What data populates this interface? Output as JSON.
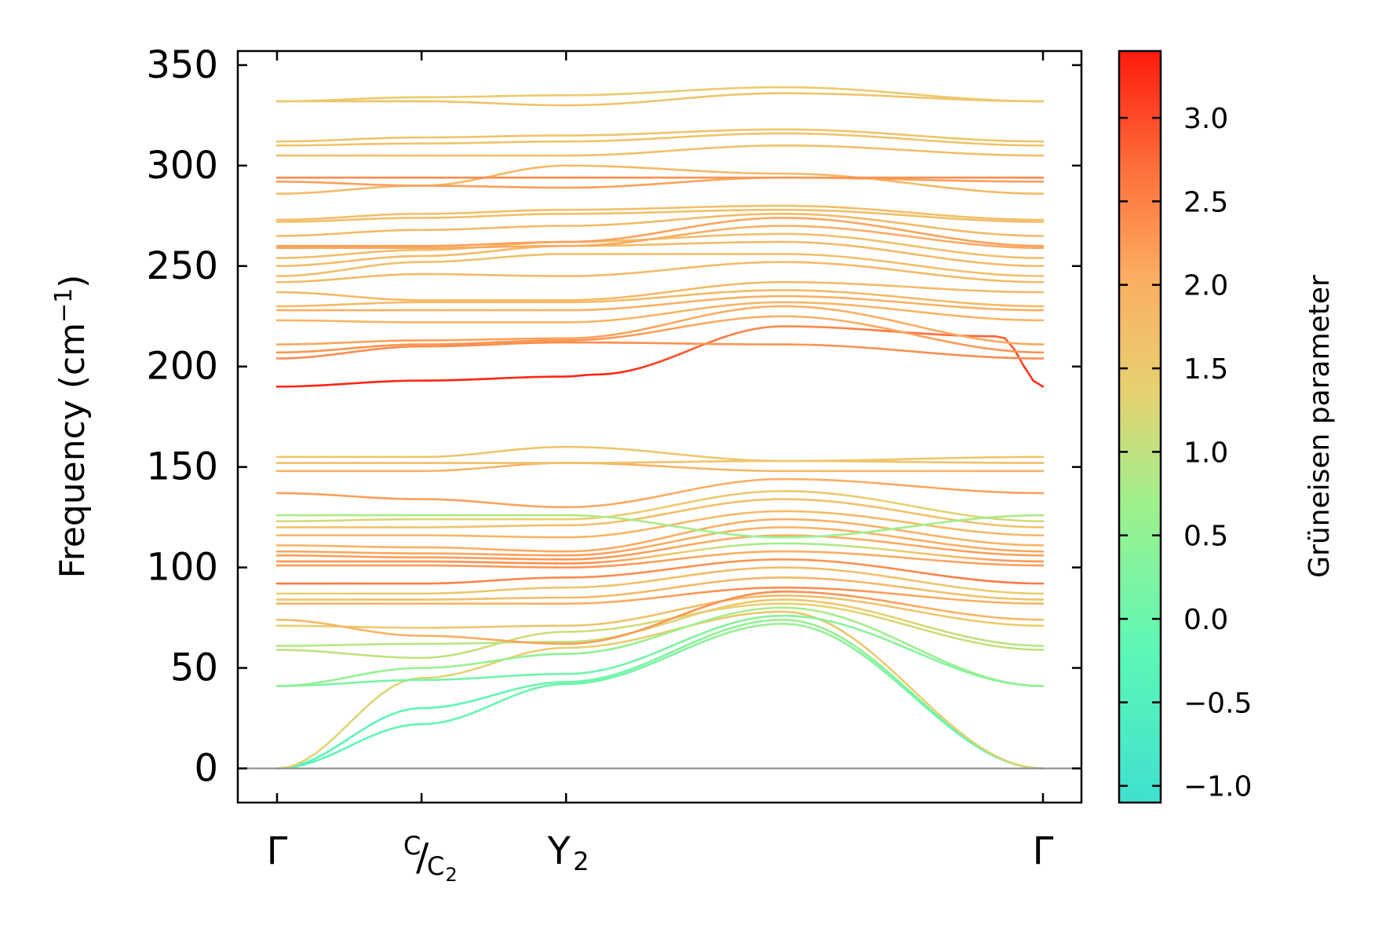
{
  "chart_data": {
    "type": "line",
    "subtype": "phonon-band-structure",
    "title": "",
    "ylabel": "Frequency (cm⁻¹)",
    "ylabel_parts": {
      "main": "Frequency (cm",
      "sup": "−1",
      "close": ")"
    },
    "ylim": [
      -17,
      357
    ],
    "yticks": [
      0,
      50,
      100,
      150,
      200,
      250,
      300,
      350
    ],
    "ytick_labels": [
      "0",
      "50",
      "100",
      "150",
      "200",
      "250",
      "300",
      "350"
    ],
    "k_range": [
      0,
      5.3
    ],
    "xticks": [
      {
        "k": 0,
        "label": "Γ"
      },
      {
        "k": 1.0,
        "label": "C/C₂"
      },
      {
        "k": 2.0,
        "label": "Y₂"
      },
      {
        "k": 5.3,
        "label": "Γ"
      }
    ],
    "xtick_display": {
      "gamma": "Γ",
      "c_num": "C",
      "c_slash": "/",
      "c_den": "C",
      "c_den_sub": "2",
      "y_main": "Y",
      "y_sub": "2"
    },
    "colorbar": {
      "label": "Grüneisen parameter",
      "range": [
        -1.1,
        3.4
      ],
      "ticks": [
        -1.0,
        -0.5,
        0.0,
        0.5,
        1.0,
        1.5,
        2.0,
        2.5,
        3.0
      ],
      "tick_labels": [
        "−1.0",
        "−0.5",
        "0.0",
        "0.5",
        "1.0",
        "1.5",
        "2.0",
        "2.5",
        "3.0"
      ],
      "colormap": "rainbow (upper half: turquoise → green → yellow → orange → red)"
    },
    "bands": [
      {
        "k": [
          0,
          1.0,
          2.0,
          3.5,
          5.3
        ],
        "freq": [
          0,
          22,
          42,
          72,
          0
        ],
        "gamma": [
          -0.3,
          -0.1,
          0.0,
          0.6,
          -0.3
        ]
      },
      {
        "k": [
          0,
          1.0,
          2.0,
          3.5,
          5.3
        ],
        "freq": [
          0,
          30,
          43,
          74,
          0
        ],
        "gamma": [
          -0.3,
          -0.2,
          0.0,
          0.6,
          -0.3
        ]
      },
      {
        "k": [
          0,
          1.0,
          2.0,
          3.5,
          5.3
        ],
        "freq": [
          0,
          45,
          60,
          78,
          0
        ],
        "gamma": [
          1.3,
          1.3,
          1.4,
          1.6,
          1.3
        ]
      },
      {
        "k": [
          0,
          1.0,
          2.0,
          3.5,
          5.3
        ],
        "freq": [
          41,
          44,
          47,
          76,
          41
        ],
        "gamma": [
          0.3,
          0.1,
          0.0,
          0.4,
          0.3
        ]
      },
      {
        "k": [
          0,
          1.0,
          2.0,
          3.5,
          5.3
        ],
        "freq": [
          41,
          50,
          57,
          80,
          41
        ],
        "gamma": [
          0.5,
          0.6,
          0.5,
          0.8,
          0.5
        ]
      },
      {
        "k": [
          0,
          1.0,
          2.0,
          3.5,
          5.3
        ],
        "freq": [
          59,
          55,
          68,
          82,
          59
        ],
        "gamma": [
          1.0,
          1.0,
          1.1,
          1.4,
          1.0
        ]
      },
      {
        "k": [
          0,
          1.0,
          2.0,
          3.5,
          5.3
        ],
        "freq": [
          61,
          62,
          63,
          84,
          61
        ],
        "gamma": [
          0.9,
          0.9,
          1.0,
          1.6,
          0.9
        ]
      },
      {
        "k": [
          0,
          1.0,
          2.0,
          3.5,
          5.3
        ],
        "freq": [
          71,
          70,
          71,
          86,
          71
        ],
        "gamma": [
          1.4,
          1.5,
          1.6,
          1.8,
          1.4
        ]
      },
      {
        "k": [
          0,
          1.0,
          2.0,
          3.5,
          5.3
        ],
        "freq": [
          74,
          66,
          62,
          88,
          74
        ],
        "gamma": [
          1.8,
          2.0,
          2.2,
          2.4,
          1.8
        ]
      },
      {
        "k": [
          0,
          1.0,
          2.0,
          3.5,
          5.3
        ],
        "freq": [
          82,
          82,
          82,
          90,
          82
        ],
        "gamma": [
          1.9,
          1.9,
          2.0,
          2.4,
          1.9
        ]
      },
      {
        "k": [
          0,
          1.0,
          2.0,
          3.5,
          5.3
        ],
        "freq": [
          84,
          84,
          85,
          95,
          84
        ],
        "gamma": [
          1.6,
          1.7,
          1.8,
          1.9,
          1.6
        ]
      },
      {
        "k": [
          0,
          1.0,
          2.0,
          3.5,
          5.3
        ],
        "freq": [
          87,
          87,
          90,
          100,
          87
        ],
        "gamma": [
          1.4,
          1.5,
          1.6,
          1.8,
          1.4
        ]
      },
      {
        "k": [
          0,
          1.0,
          2.0,
          3.5,
          5.3
        ],
        "freq": [
          92,
          92,
          95,
          104,
          92
        ],
        "gamma": [
          2.6,
          2.5,
          2.4,
          2.3,
          2.6
        ]
      },
      {
        "k": [
          0,
          1.0,
          2.0,
          3.5,
          5.3
        ],
        "freq": [
          101,
          101,
          100,
          108,
          101
        ],
        "gamma": [
          2.2,
          2.2,
          2.3,
          2.0,
          2.2
        ]
      },
      {
        "k": [
          0,
          1.0,
          2.0,
          3.5,
          5.3
        ],
        "freq": [
          103,
          103,
          102,
          112,
          103
        ],
        "gamma": [
          2.3,
          2.3,
          2.4,
          0.7,
          2.3
        ]
      },
      {
        "k": [
          0,
          1.0,
          2.0,
          3.5,
          5.3
        ],
        "freq": [
          106,
          105,
          104,
          116,
          106
        ],
        "gamma": [
          2.2,
          2.2,
          2.3,
          2.0,
          2.2
        ]
      },
      {
        "k": [
          0,
          1.0,
          2.0,
          3.5,
          5.3
        ],
        "freq": [
          108,
          107,
          106,
          120,
          108
        ],
        "gamma": [
          2.1,
          2.1,
          2.2,
          1.9,
          2.1
        ]
      },
      {
        "k": [
          0,
          1.0,
          2.0,
          3.5,
          5.3
        ],
        "freq": [
          111,
          110,
          108,
          124,
          111
        ],
        "gamma": [
          1.9,
          2.0,
          2.1,
          2.0,
          1.9
        ]
      },
      {
        "k": [
          0,
          1.0,
          2.0,
          3.5,
          5.3
        ],
        "freq": [
          116,
          116,
          115,
          128,
          116
        ],
        "gamma": [
          1.8,
          1.8,
          1.9,
          1.8,
          1.8
        ]
      },
      {
        "k": [
          0,
          1.0,
          2.0,
          3.5,
          5.3
        ],
        "freq": [
          120,
          120,
          121,
          134,
          120
        ],
        "gamma": [
          1.6,
          1.6,
          1.7,
          1.7,
          1.6
        ]
      },
      {
        "k": [
          0,
          1.0,
          2.0,
          3.5,
          5.3
        ],
        "freq": [
          123,
          124,
          124,
          138,
          123
        ],
        "gamma": [
          1.2,
          1.3,
          1.4,
          1.5,
          1.2
        ]
      },
      {
        "k": [
          0,
          1.0,
          2.0,
          3.5,
          5.3
        ],
        "freq": [
          126,
          126,
          126,
          115,
          126
        ],
        "gamma": [
          0.8,
          0.8,
          0.9,
          0.6,
          0.8
        ]
      },
      {
        "k": [
          0,
          1.0,
          2.0,
          3.5,
          5.3
        ],
        "freq": [
          137,
          134,
          130,
          144,
          137
        ],
        "gamma": [
          2.2,
          2.2,
          2.1,
          2.0,
          2.2
        ]
      },
      {
        "k": [
          0,
          1.0,
          2.0,
          3.5,
          5.3
        ],
        "freq": [
          148,
          148,
          152,
          148,
          148
        ],
        "gamma": [
          1.9,
          1.9,
          2.0,
          1.8,
          1.9
        ]
      },
      {
        "k": [
          0,
          1.0,
          2.0,
          3.5,
          5.3
        ],
        "freq": [
          152,
          152,
          152,
          153,
          152
        ],
        "gamma": [
          1.7,
          1.7,
          1.7,
          1.6,
          1.7
        ]
      },
      {
        "k": [
          0,
          1.0,
          2.0,
          3.5,
          5.3
        ],
        "freq": [
          155,
          155,
          160,
          153,
          155
        ],
        "gamma": [
          1.6,
          1.6,
          1.6,
          1.5,
          1.6
        ]
      },
      {
        "k": [
          0,
          1.0,
          2.0,
          2.2,
          3.5,
          5.0,
          5.3
        ],
        "freq": [
          190,
          193,
          195,
          196,
          220,
          215,
          190
        ],
        "gamma": [
          3.3,
          3.3,
          3.3,
          3.3,
          2.4,
          2.8,
          3.3
        ]
      },
      {
        "k": [
          0,
          1.0,
          2.0,
          3.5,
          5.3
        ],
        "freq": [
          204,
          210,
          212,
          211,
          204
        ],
        "gamma": [
          2.4,
          2.4,
          2.4,
          2.3,
          2.4
        ]
      },
      {
        "k": [
          0,
          1.0,
          2.0,
          3.5,
          5.3
        ],
        "freq": [
          207,
          211,
          213,
          225,
          207
        ],
        "gamma": [
          2.3,
          2.3,
          2.3,
          2.0,
          2.3
        ]
      },
      {
        "k": [
          0,
          1.0,
          2.0,
          3.5,
          5.3
        ],
        "freq": [
          211,
          213,
          214,
          230,
          211
        ],
        "gamma": [
          2.1,
          2.2,
          2.2,
          2.0,
          2.1
        ]
      },
      {
        "k": [
          0,
          1.0,
          2.0,
          3.5,
          5.3
        ],
        "freq": [
          223,
          222,
          222,
          232,
          223
        ],
        "gamma": [
          1.9,
          1.9,
          1.9,
          1.9,
          1.9
        ]
      },
      {
        "k": [
          0,
          1.0,
          2.0,
          3.5,
          5.3
        ],
        "freq": [
          228,
          228,
          228,
          235,
          228
        ],
        "gamma": [
          2.0,
          2.0,
          2.0,
          2.0,
          2.0
        ]
      },
      {
        "k": [
          0,
          1.0,
          2.0,
          3.5,
          5.3
        ],
        "freq": [
          230,
          232,
          232,
          238,
          230
        ],
        "gamma": [
          1.8,
          1.8,
          1.8,
          1.8,
          1.8
        ]
      },
      {
        "k": [
          0,
          1.0,
          2.0,
          3.5,
          5.3
        ],
        "freq": [
          237,
          233,
          233,
          242,
          237
        ],
        "gamma": [
          1.8,
          1.8,
          1.8,
          1.8,
          1.8
        ]
      },
      {
        "k": [
          0,
          1.0,
          2.0,
          3.5,
          5.3
        ],
        "freq": [
          242,
          246,
          245,
          252,
          242
        ],
        "gamma": [
          1.8,
          1.8,
          1.8,
          1.8,
          1.8
        ]
      },
      {
        "k": [
          0,
          1.0,
          2.0,
          3.5,
          5.3
        ],
        "freq": [
          245,
          252,
          256,
          256,
          245
        ],
        "gamma": [
          1.7,
          1.7,
          1.7,
          1.7,
          1.7
        ]
      },
      {
        "k": [
          0,
          1.0,
          2.0,
          3.5,
          5.3
        ],
        "freq": [
          250,
          255,
          260,
          262,
          250
        ],
        "gamma": [
          1.8,
          1.8,
          1.8,
          1.8,
          1.8
        ]
      },
      {
        "k": [
          0,
          1.0,
          2.0,
          3.5,
          5.3
        ],
        "freq": [
          254,
          258,
          262,
          266,
          254
        ],
        "gamma": [
          1.7,
          1.7,
          1.7,
          1.7,
          1.7
        ]
      },
      {
        "k": [
          0,
          1.0,
          2.0,
          3.5,
          5.3
        ],
        "freq": [
          259,
          259,
          260,
          270,
          259
        ],
        "gamma": [
          2.1,
          2.1,
          2.1,
          2.0,
          2.1
        ]
      },
      {
        "k": [
          0,
          1.0,
          2.0,
          3.5,
          5.3
        ],
        "freq": [
          260,
          260,
          262,
          274,
          260
        ],
        "gamma": [
          2.2,
          2.2,
          2.2,
          2.1,
          2.2
        ]
      },
      {
        "k": [
          0,
          1.0,
          2.0,
          3.5,
          5.3
        ],
        "freq": [
          265,
          268,
          270,
          276,
          265
        ],
        "gamma": [
          1.8,
          1.8,
          1.8,
          1.8,
          1.8
        ]
      },
      {
        "k": [
          0,
          1.0,
          2.0,
          3.5,
          5.3
        ],
        "freq": [
          272,
          274,
          276,
          278,
          272
        ],
        "gamma": [
          1.7,
          1.7,
          1.7,
          1.7,
          1.7
        ]
      },
      {
        "k": [
          0,
          1.0,
          2.0,
          3.5,
          5.3
        ],
        "freq": [
          273,
          276,
          278,
          280,
          273
        ],
        "gamma": [
          1.7,
          1.7,
          1.7,
          1.7,
          1.7
        ]
      },
      {
        "k": [
          0,
          1.0,
          2.0,
          3.5,
          5.3
        ],
        "freq": [
          286,
          290,
          300,
          296,
          286
        ],
        "gamma": [
          1.8,
          1.8,
          1.8,
          1.8,
          1.8
        ]
      },
      {
        "k": [
          0,
          1.0,
          2.0,
          3.5,
          5.3
        ],
        "freq": [
          292,
          290,
          289,
          294,
          292
        ],
        "gamma": [
          2.2,
          2.2,
          2.2,
          2.1,
          2.2
        ]
      },
      {
        "k": [
          0,
          1.0,
          2.0,
          3.5,
          5.3
        ],
        "freq": [
          294,
          294,
          294,
          294,
          294
        ],
        "gamma": [
          2.4,
          2.4,
          2.4,
          2.3,
          2.4
        ]
      },
      {
        "k": [
          0,
          1.0,
          2.0,
          3.5,
          5.3
        ],
        "freq": [
          305,
          305,
          305,
          310,
          305
        ],
        "gamma": [
          1.7,
          1.7,
          1.7,
          1.7,
          1.7
        ]
      },
      {
        "k": [
          0,
          1.0,
          2.0,
          3.5,
          5.3
        ],
        "freq": [
          310,
          311,
          312,
          316,
          310
        ],
        "gamma": [
          1.6,
          1.6,
          1.6,
          1.6,
          1.6
        ]
      },
      {
        "k": [
          0,
          1.0,
          2.0,
          3.5,
          5.3
        ],
        "freq": [
          312,
          314,
          315,
          318,
          312
        ],
        "gamma": [
          1.6,
          1.6,
          1.6,
          1.6,
          1.6
        ]
      },
      {
        "k": [
          0,
          1.0,
          2.0,
          3.5,
          5.3
        ],
        "freq": [
          332,
          332,
          330,
          336,
          332
        ],
        "gamma": [
          1.6,
          1.6,
          1.6,
          1.6,
          1.6
        ]
      },
      {
        "k": [
          0,
          1.0,
          2.0,
          3.5,
          5.3
        ],
        "freq": [
          332,
          334,
          335,
          339,
          332
        ],
        "gamma": [
          1.5,
          1.5,
          1.5,
          1.5,
          1.5
        ]
      }
    ]
  }
}
